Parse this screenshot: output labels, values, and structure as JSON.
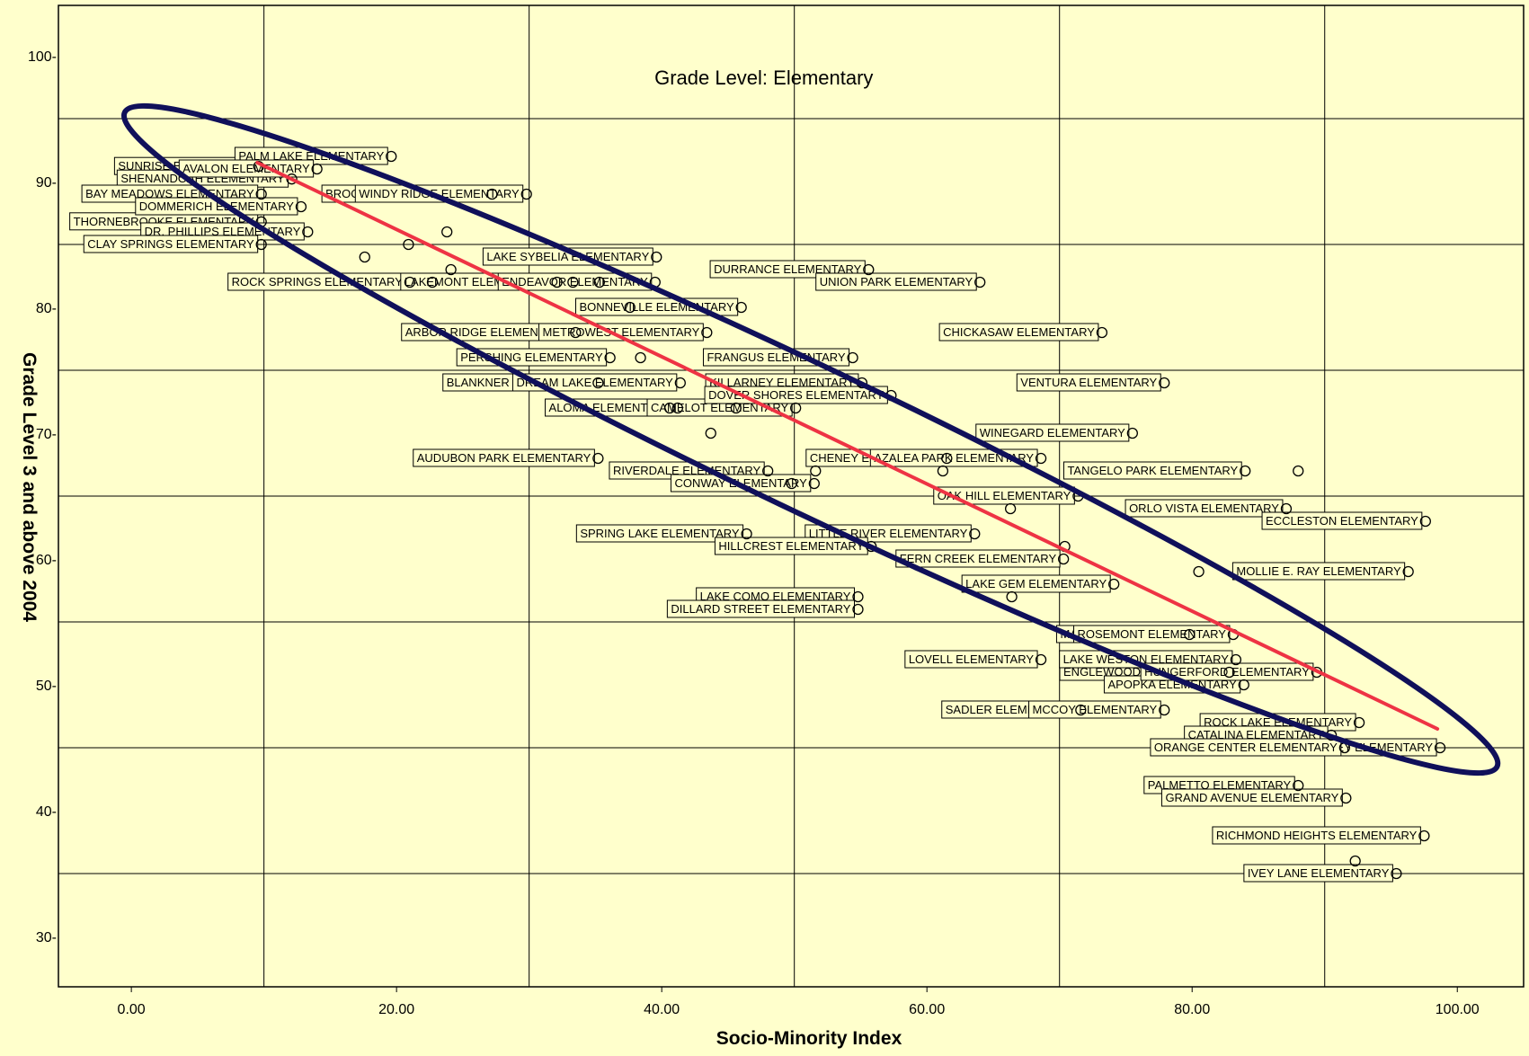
{
  "chart_data": {
    "type": "scatter",
    "title": "Grade Level: Elementary",
    "xlabel": "Socio-Minority Index",
    "ylabel": "Grade Level 3 and above 2004",
    "xlim": [
      -5.5,
      105
    ],
    "ylim": [
      26,
      104
    ],
    "xticks": [
      0,
      20,
      40,
      60,
      80,
      100
    ],
    "xtick_labels": [
      "0.00",
      "20.00",
      "40.00",
      "60.00",
      "80.00",
      "100.00"
    ],
    "yticks": [
      30,
      40,
      50,
      60,
      70,
      80,
      90,
      100
    ],
    "ytick_labels": [
      "30-",
      "40-",
      "50-",
      "60-",
      "70-",
      "80-",
      "90-",
      "100-"
    ],
    "grid": true,
    "fit_line": {
      "x": [
        9.5,
        98.5
      ],
      "y": [
        91.5,
        46.5
      ],
      "color": "#ee3344"
    },
    "ellipse": {
      "color": "#10105a",
      "note": "encloses the main band of points"
    },
    "points": [
      {
        "x": 9.6,
        "y": 91.2,
        "label": "SUNRISE ELEMENTARY"
      },
      {
        "x": 12.1,
        "y": 90.2,
        "label": "SHENANDOAH ELEMENTARY"
      },
      {
        "x": 9.8,
        "y": 89.0,
        "label": "BAY MEADOWS ELEMENTARY"
      },
      {
        "x": 9.8,
        "y": 86.8,
        "label": "THORNEBROOKE ELEMENTARY"
      },
      {
        "x": 19.6,
        "y": 92.0,
        "label": "PALM LAKE ELEMENTARY"
      },
      {
        "x": 14.0,
        "y": 91.0,
        "label": "AVALON ELEMENTARY"
      },
      {
        "x": 12.8,
        "y": 88.0,
        "label": "DOMMERICH ELEMENTARY"
      },
      {
        "x": 13.3,
        "y": 86.0,
        "label": "DR. PHILLIPS ELEMENTARY"
      },
      {
        "x": 23.8,
        "y": 86.0,
        "label": ""
      },
      {
        "x": 20.9,
        "y": 85.0,
        "label": ""
      },
      {
        "x": 9.8,
        "y": 85.0,
        "label": "CLAY SPRINGS ELEMENTARY"
      },
      {
        "x": 17.6,
        "y": 84.0,
        "label": ""
      },
      {
        "x": 24.1,
        "y": 83.0,
        "label": ""
      },
      {
        "x": 21.0,
        "y": 82.0,
        "label": "ROCK SPRINGS ELEMENTARY"
      },
      {
        "x": 22.7,
        "y": 82.0,
        "label": ""
      },
      {
        "x": 27.2,
        "y": 89.0,
        "label": "BROOKSHIRE ELEMENTARY"
      },
      {
        "x": 29.8,
        "y": 89.0,
        "label": "WINDY RIDGE ELEMENTARY"
      },
      {
        "x": 32.1,
        "y": 82.0,
        "label": "LAKEMONT ELEMENTARY"
      },
      {
        "x": 33.3,
        "y": 82.0,
        "label": ""
      },
      {
        "x": 35.3,
        "y": 82.0,
        "label": ""
      },
      {
        "x": 39.6,
        "y": 84.0,
        "label": "LAKE SYBELIA ELEMENTARY"
      },
      {
        "x": 39.5,
        "y": 82.0,
        "label": "ENDEAVOR ELEMENTARY"
      },
      {
        "x": 37.6,
        "y": 80.0,
        "label": ""
      },
      {
        "x": 33.5,
        "y": 78.0,
        "label": "ARBOR RIDGE ELEMENTARY"
      },
      {
        "x": 46.0,
        "y": 80.0,
        "label": "BONNEVILLE ELEMENTARY"
      },
      {
        "x": 43.4,
        "y": 78.0,
        "label": "METROWEST ELEMENTARY"
      },
      {
        "x": 36.1,
        "y": 76.0,
        "label": "PERSHING ELEMENTARY"
      },
      {
        "x": 38.4,
        "y": 76.0,
        "label": ""
      },
      {
        "x": 35.2,
        "y": 74.0,
        "label": "BLANKNER ELEMENTARY"
      },
      {
        "x": 41.4,
        "y": 74.0,
        "label": "DREAM LAKE ELEMENTARY"
      },
      {
        "x": 40.6,
        "y": 72.0,
        "label": ""
      },
      {
        "x": 41.2,
        "y": 72.0,
        "label": "ALOMA ELEMENTARY"
      },
      {
        "x": 45.6,
        "y": 72.0,
        "label": ""
      },
      {
        "x": 50.1,
        "y": 72.0,
        "label": "CAMELOT ELEMENTARY"
      },
      {
        "x": 43.7,
        "y": 70.0,
        "label": ""
      },
      {
        "x": 35.2,
        "y": 68.0,
        "label": "AUDUBON PARK ELEMENTARY"
      },
      {
        "x": 48.0,
        "y": 67.0,
        "label": "RIVERDALE ELEMENTARY"
      },
      {
        "x": 49.8,
        "y": 66.0,
        "label": ""
      },
      {
        "x": 51.6,
        "y": 67.0,
        "label": ""
      },
      {
        "x": 51.5,
        "y": 66.0,
        "label": "CONWAY ELEMENTARY"
      },
      {
        "x": 46.4,
        "y": 62.0,
        "label": "SPRING LAKE ELEMENTARY"
      },
      {
        "x": 55.6,
        "y": 83.0,
        "label": "DURRANCE ELEMENTARY"
      },
      {
        "x": 64.0,
        "y": 82.0,
        "label": "UNION PARK ELEMENTARY"
      },
      {
        "x": 54.4,
        "y": 76.0,
        "label": "FRANGUS ELEMENTARY"
      },
      {
        "x": 55.1,
        "y": 74.0,
        "label": "KILLARNEY ELEMENTARY"
      },
      {
        "x": 57.3,
        "y": 73.0,
        "label": "DOVER SHORES ELEMENTARY"
      },
      {
        "x": 61.5,
        "y": 68.0,
        "label": "CHENEY ELEMENTARY"
      },
      {
        "x": 61.2,
        "y": 67.0,
        "label": ""
      },
      {
        "x": 66.3,
        "y": 64.0,
        "label": ""
      },
      {
        "x": 63.6,
        "y": 62.0,
        "label": "LITTLE RIVER ELEMENTARY"
      },
      {
        "x": 55.8,
        "y": 61.0,
        "label": "HILLCREST ELEMENTARY"
      },
      {
        "x": 54.8,
        "y": 57.0,
        "label": "LAKE COMO ELEMENTARY"
      },
      {
        "x": 66.4,
        "y": 57.0,
        "label": ""
      },
      {
        "x": 54.8,
        "y": 56.0,
        "label": "DILLARD STREET ELEMENTARY"
      },
      {
        "x": 73.2,
        "y": 78.0,
        "label": "CHICKASAW ELEMENTARY"
      },
      {
        "x": 77.9,
        "y": 74.0,
        "label": "VENTURA ELEMENTARY"
      },
      {
        "x": 75.5,
        "y": 70.0,
        "label": "WINEGARD ELEMENTARY"
      },
      {
        "x": 68.6,
        "y": 68.0,
        "label": "AZALEA PARK ELEMENTARY"
      },
      {
        "x": 71.4,
        "y": 65.0,
        "label": "OAK HILL ELEMENTARY"
      },
      {
        "x": 70.3,
        "y": 60.0,
        "label": "FERN CREEK ELEMENTARY"
      },
      {
        "x": 70.4,
        "y": 61.0,
        "label": ""
      },
      {
        "x": 80.5,
        "y": 59.0,
        "label": ""
      },
      {
        "x": 74.1,
        "y": 58.0,
        "label": "LAKE GEM ELEMENTARY"
      },
      {
        "x": 79.8,
        "y": 54.0,
        "label": "MAXEY ELEMENTARY"
      },
      {
        "x": 68.6,
        "y": 52.0,
        "label": "LOVELL ELEMENTARY"
      },
      {
        "x": 71.6,
        "y": 48.0,
        "label": "SADLER ELEMENTARY"
      },
      {
        "x": 77.9,
        "y": 48.0,
        "label": "MCCOY ELEMENTARY"
      },
      {
        "x": 82.8,
        "y": 51.0,
        "label": "ENGLEWOOD ELEMENTARY"
      },
      {
        "x": 84.0,
        "y": 67.0,
        "label": "TANGELO PARK ELEMENTARY"
      },
      {
        "x": 88.0,
        "y": 67.0,
        "label": ""
      },
      {
        "x": 87.1,
        "y": 64.0,
        "label": "ORLO VISTA ELEMENTARY"
      },
      {
        "x": 97.6,
        "y": 63.0,
        "label": "ECCLESTON ELEMENTARY"
      },
      {
        "x": 96.3,
        "y": 59.0,
        "label": "MOLLIE E. RAY ELEMENTARY"
      },
      {
        "x": 83.1,
        "y": 54.0,
        "label": "ROSEMONT ELEMENTARY"
      },
      {
        "x": 83.3,
        "y": 52.0,
        "label": "LAKE WESTON ELEMENTARY"
      },
      {
        "x": 83.9,
        "y": 50.0,
        "label": "APOPKA ELEMENTARY"
      },
      {
        "x": 89.4,
        "y": 51.0,
        "label": "HUNGERFORD ELEMENTARY"
      },
      {
        "x": 92.6,
        "y": 47.0,
        "label": "ROCK LAKE ELEMENTARY"
      },
      {
        "x": 90.5,
        "y": 46.0,
        "label": "CATALINA ELEMENTARY"
      },
      {
        "x": 98.7,
        "y": 45.0,
        "label": "WHEATLEY ELEMENTARY"
      },
      {
        "x": 91.5,
        "y": 45.0,
        "label": "ORANGE CENTER ELEMENTARY"
      },
      {
        "x": 88.0,
        "y": 42.0,
        "label": "PALMETTO ELEMENTARY"
      },
      {
        "x": 91.6,
        "y": 41.0,
        "label": "GRAND AVENUE ELEMENTARY"
      },
      {
        "x": 97.5,
        "y": 38.0,
        "label": "RICHMOND HEIGHTS ELEMENTARY"
      },
      {
        "x": 92.3,
        "y": 36.0,
        "label": ""
      },
      {
        "x": 95.4,
        "y": 35.0,
        "label": "IVEY LANE ELEMENTARY"
      }
    ]
  }
}
